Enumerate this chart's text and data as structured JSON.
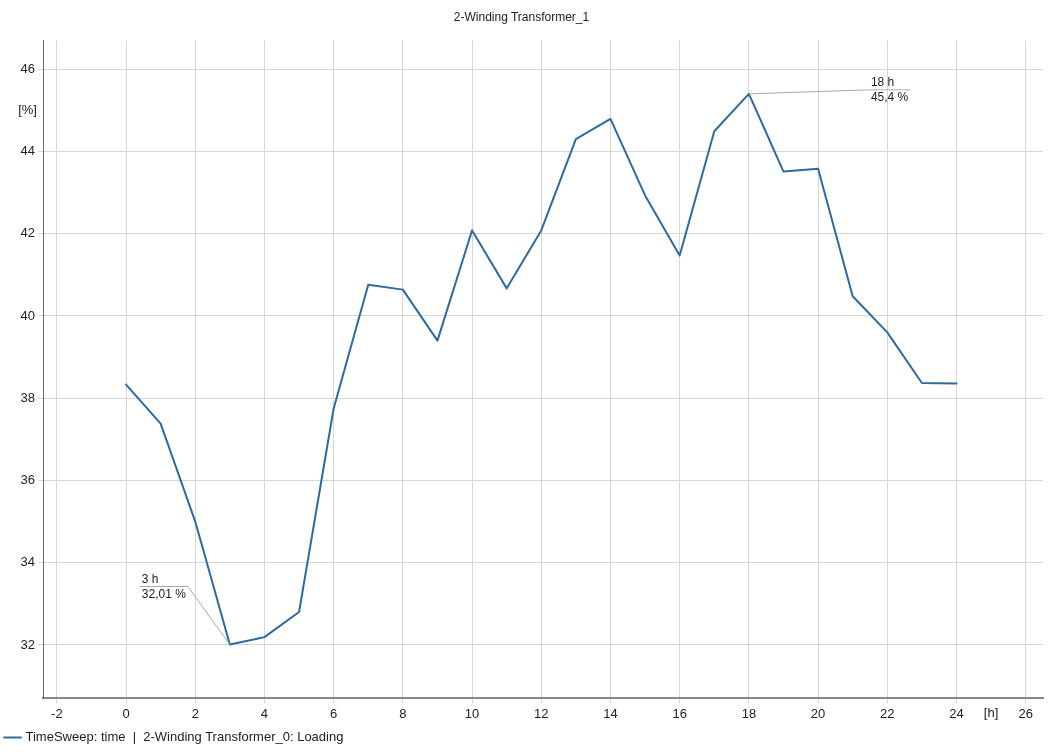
{
  "chart_data": {
    "type": "line",
    "title": "2-Winding Transformer_1",
    "xlabel": "[h]",
    "ylabel": "[%]",
    "x": [
      0,
      1,
      2,
      3,
      4,
      5,
      6,
      7,
      8,
      9,
      10,
      11,
      12,
      13,
      14,
      15,
      16,
      17,
      18,
      19,
      20,
      21,
      22,
      23,
      24
    ],
    "series": [
      {
        "name": "TimeSweep: time  |  2-Winding Transformer_0: Loading",
        "color": "#2f6a9e",
        "values": [
          38.33,
          37.38,
          35.0,
          32.01,
          32.19,
          32.8,
          37.75,
          40.76,
          40.64,
          39.4,
          42.08,
          40.67,
          42.08,
          44.3,
          44.79,
          42.93,
          41.47,
          44.49,
          45.4,
          43.51,
          43.58,
          40.48,
          39.6,
          38.37,
          38.36
        ]
      }
    ],
    "xlim": [
      -2.4,
      26.5
    ],
    "xticks": [
      -2,
      0,
      2,
      4,
      6,
      8,
      10,
      12,
      14,
      16,
      18,
      20,
      22,
      24,
      26
    ],
    "ylim": [
      30.7,
      46.7
    ],
    "yticks": [
      32,
      34,
      36,
      38,
      40,
      42,
      44,
      46
    ],
    "annotations": [
      {
        "text": "3 h\n32,01 %",
        "x": 3,
        "y": 32.01
      },
      {
        "text": "18 h\n45,4 %",
        "x": 18,
        "y": 45.4
      }
    ],
    "grid": true,
    "legend": "bottom left",
    "marker": "none",
    "line_style": "solid"
  }
}
